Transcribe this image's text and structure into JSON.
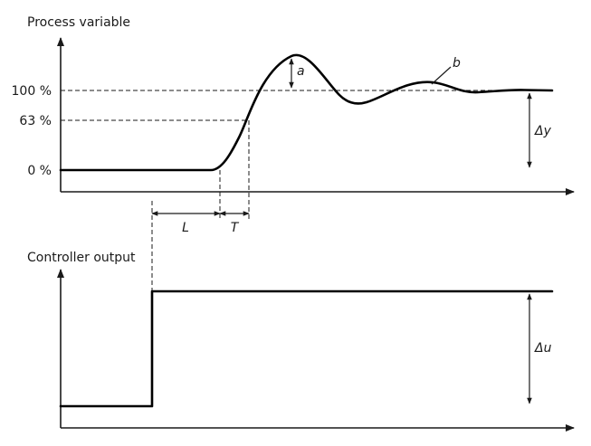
{
  "top_plot": {
    "title": "Process variable",
    "ticks": [
      "100 %",
      "63 %",
      "0 %"
    ],
    "labels": {
      "a": "a",
      "b": "b",
      "delta_y": "Δy"
    }
  },
  "intervals": {
    "L": "L",
    "T": "T"
  },
  "bottom_plot": {
    "title": "Controller output",
    "labels": {
      "delta_u": "Δu"
    }
  },
  "colors": {
    "line": "#000000",
    "text": "#1a1a1a"
  }
}
